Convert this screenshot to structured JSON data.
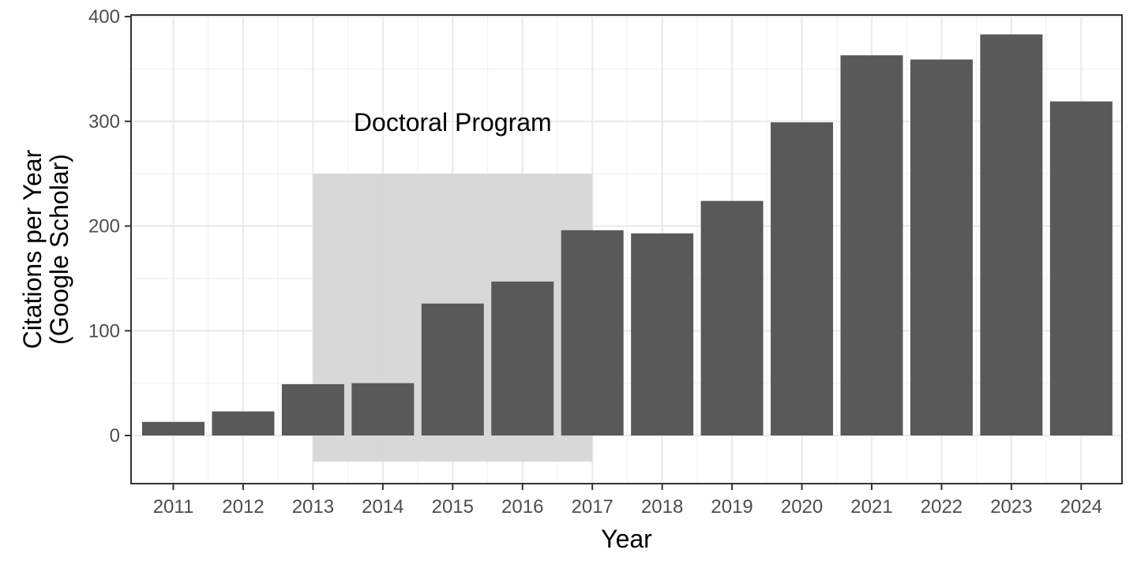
{
  "chart_data": {
    "type": "bar",
    "title": "",
    "xlabel": "Year",
    "ylabel_lines": [
      "Citations per Year",
      "(Google Scholar)"
    ],
    "categories": [
      "2011",
      "2012",
      "2013",
      "2014",
      "2015",
      "2016",
      "2017",
      "2018",
      "2019",
      "2020",
      "2021",
      "2022",
      "2023",
      "2024"
    ],
    "values": [
      13,
      23,
      49,
      50,
      126,
      147,
      196,
      193,
      224,
      299,
      363,
      359,
      383,
      319
    ],
    "ylim": [
      -46,
      404
    ],
    "yticks": [
      0,
      100,
      200,
      300,
      400
    ],
    "grid": true,
    "legend": "none",
    "bar_color": "#595959",
    "shaded_region": {
      "label": "Doctoral Program",
      "x_start": "2013",
      "x_end": "2017",
      "y_range": [
        -25,
        250
      ],
      "color": "#d6d6d6"
    }
  }
}
